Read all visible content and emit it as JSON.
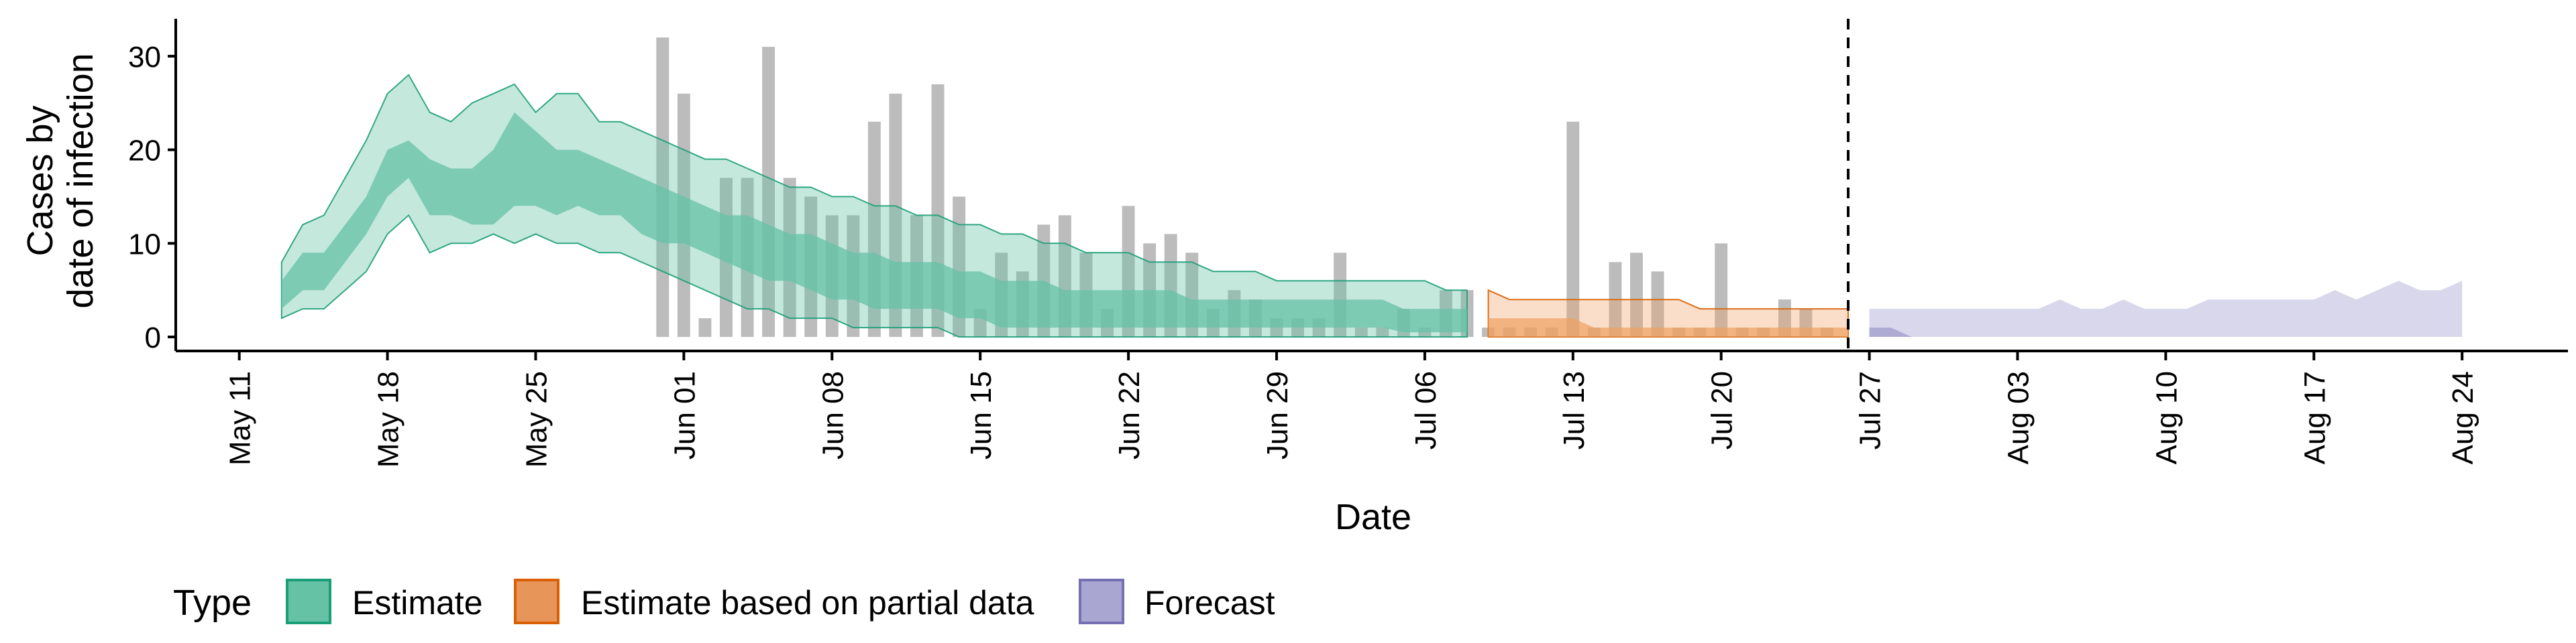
{
  "chart_data": {
    "type": "area",
    "x_axis": {
      "label": "Date",
      "range": [
        "2020-05-08",
        "2020-08-29"
      ],
      "ticks": [
        {
          "date": "2020-05-11",
          "label": "May 11"
        },
        {
          "date": "2020-05-18",
          "label": "May 18"
        },
        {
          "date": "2020-05-25",
          "label": "May 25"
        },
        {
          "date": "2020-06-01",
          "label": "Jun 01"
        },
        {
          "date": "2020-06-08",
          "label": "Jun 08"
        },
        {
          "date": "2020-06-15",
          "label": "Jun 15"
        },
        {
          "date": "2020-06-22",
          "label": "Jun 22"
        },
        {
          "date": "2020-06-29",
          "label": "Jun 29"
        },
        {
          "date": "2020-07-06",
          "label": "Jul 06"
        },
        {
          "date": "2020-07-13",
          "label": "Jul 13"
        },
        {
          "date": "2020-07-20",
          "label": "Jul 20"
        },
        {
          "date": "2020-07-27",
          "label": "Jul 27"
        },
        {
          "date": "2020-08-03",
          "label": "Aug 03"
        },
        {
          "date": "2020-08-10",
          "label": "Aug 10"
        },
        {
          "date": "2020-08-17",
          "label": "Aug 17"
        },
        {
          "date": "2020-08-24",
          "label": "Aug 24"
        }
      ]
    },
    "y_axis": {
      "label_lines": [
        "Cases by",
        "date of infection"
      ],
      "range": [
        -1.5,
        34
      ],
      "ticks": [
        0,
        10,
        20,
        30
      ]
    },
    "vline_date": "2020-07-26",
    "grid": false,
    "legend": {
      "title": "Type",
      "position": "bottom",
      "entries": [
        {
          "label": "Estimate",
          "fill": "#66C2A5",
          "stroke": "#1B9E77"
        },
        {
          "label": "Estimate based on partial data",
          "fill": "#E8955A",
          "stroke": "#D95F02"
        },
        {
          "label": "Forecast",
          "fill": "#A9A6D2",
          "stroke": "#7570B3"
        }
      ]
    },
    "colors": {
      "observed_bar": "#A6A6A6",
      "estimate_band": "#66C2A5",
      "estimate_line": "#1B9E77",
      "partial_band": "#F0A163",
      "partial_line": "#D95F02",
      "forecast_band": "#A9A6D2",
      "forecast_line": "#7570B3"
    },
    "observed_cases": {
      "dates": [
        "2020-05-31",
        "2020-06-01",
        "2020-06-02",
        "2020-06-03",
        "2020-06-04",
        "2020-06-05",
        "2020-06-06",
        "2020-06-07",
        "2020-06-08",
        "2020-06-09",
        "2020-06-10",
        "2020-06-11",
        "2020-06-12",
        "2020-06-13",
        "2020-06-14",
        "2020-06-15",
        "2020-06-16",
        "2020-06-17",
        "2020-06-18",
        "2020-06-19",
        "2020-06-20",
        "2020-06-21",
        "2020-06-22",
        "2020-06-23",
        "2020-06-24",
        "2020-06-25",
        "2020-06-26",
        "2020-06-27",
        "2020-06-28",
        "2020-06-29",
        "2020-06-30",
        "2020-07-01",
        "2020-07-02",
        "2020-07-03",
        "2020-07-04",
        "2020-07-05",
        "2020-07-06",
        "2020-07-07",
        "2020-07-08",
        "2020-07-09",
        "2020-07-10",
        "2020-07-11",
        "2020-07-12",
        "2020-07-13",
        "2020-07-14",
        "2020-07-15",
        "2020-07-16",
        "2020-07-17",
        "2020-07-18",
        "2020-07-19",
        "2020-07-20",
        "2020-07-21",
        "2020-07-22",
        "2020-07-23",
        "2020-07-24",
        "2020-07-25"
      ],
      "values": [
        32,
        26,
        2,
        17,
        17,
        31,
        17,
        15,
        13,
        13,
        23,
        26,
        13,
        27,
        15,
        3,
        9,
        7,
        12,
        13,
        9,
        3,
        14,
        10,
        11,
        9,
        3,
        5,
        4,
        2,
        2,
        2,
        9,
        1,
        1,
        3,
        1,
        5,
        5,
        1,
        1,
        1,
        1,
        23,
        1,
        8,
        9,
        7,
        1,
        1,
        10,
        1,
        1,
        4,
        3,
        1
      ]
    },
    "estimate": {
      "dates": [
        "2020-05-13",
        "2020-05-14",
        "2020-05-15",
        "2020-05-16",
        "2020-05-17",
        "2020-05-18",
        "2020-05-19",
        "2020-05-20",
        "2020-05-21",
        "2020-05-22",
        "2020-05-23",
        "2020-05-24",
        "2020-05-25",
        "2020-05-26",
        "2020-05-27",
        "2020-05-28",
        "2020-05-29",
        "2020-05-30",
        "2020-05-31",
        "2020-06-01",
        "2020-06-02",
        "2020-06-03",
        "2020-06-04",
        "2020-06-05",
        "2020-06-06",
        "2020-06-07",
        "2020-06-08",
        "2020-06-09",
        "2020-06-10",
        "2020-06-11",
        "2020-06-12",
        "2020-06-13",
        "2020-06-14",
        "2020-06-15",
        "2020-06-16",
        "2020-06-17",
        "2020-06-18",
        "2020-06-19",
        "2020-06-20",
        "2020-06-21",
        "2020-06-22",
        "2020-06-23",
        "2020-06-24",
        "2020-06-25",
        "2020-06-26",
        "2020-06-27",
        "2020-06-28",
        "2020-06-29",
        "2020-06-30",
        "2020-07-01",
        "2020-07-02",
        "2020-07-03",
        "2020-07-04",
        "2020-07-05",
        "2020-07-06",
        "2020-07-07",
        "2020-07-08"
      ],
      "lower90": [
        2,
        3,
        3,
        5,
        7,
        11,
        13,
        9,
        10,
        10,
        11,
        10,
        11,
        10,
        10,
        9,
        9,
        8,
        7,
        6,
        5,
        4,
        3,
        3,
        2,
        2,
        2,
        1,
        1,
        1,
        1,
        1,
        0,
        0,
        0,
        0,
        0,
        0,
        0,
        0,
        0,
        0,
        0,
        0,
        0,
        0,
        0,
        0,
        0,
        0,
        0,
        0,
        0,
        0,
        0,
        0,
        0
      ],
      "lower50": [
        3,
        5,
        5,
        8,
        11,
        15,
        17,
        13,
        13,
        12,
        12,
        14,
        14,
        13,
        14,
        13,
        13,
        11,
        10,
        10,
        9,
        8,
        7,
        6,
        6,
        5,
        4,
        4,
        3,
        3,
        3,
        3,
        2,
        2,
        1,
        1,
        1,
        1,
        1,
        1,
        1,
        1,
        1,
        1,
        1,
        1,
        1,
        1,
        1,
        1,
        1,
        1,
        1,
        0.5,
        0.5,
        0.5,
        0.5
      ],
      "median": [
        4,
        6,
        6,
        10,
        13,
        17,
        19,
        17,
        16,
        16,
        17,
        20,
        18,
        17,
        17,
        16,
        15,
        14,
        13,
        12,
        11,
        10,
        10,
        9,
        8,
        8,
        7,
        6,
        6,
        5,
        5,
        5,
        4,
        4,
        3,
        3,
        3,
        3,
        3,
        3,
        3,
        3,
        3,
        2,
        2,
        2,
        2,
        2,
        2,
        2,
        2,
        2,
        2,
        1,
        1,
        1,
        1
      ],
      "upper50": [
        6,
        9,
        9,
        12,
        15,
        20,
        21,
        19,
        18,
        18,
        20,
        24,
        22,
        20,
        20,
        19,
        18,
        17,
        16,
        15,
        14,
        13,
        13,
        12,
        11,
        11,
        10,
        9,
        9,
        8,
        8,
        8,
        7,
        7,
        6,
        6,
        6,
        5,
        5,
        5,
        5,
        5,
        5,
        4,
        4,
        4,
        4,
        4,
        4,
        4,
        4,
        4,
        4,
        3,
        3,
        3,
        3
      ],
      "upper90": [
        8,
        12,
        13,
        17,
        21,
        26,
        28,
        24,
        23,
        25,
        26,
        27,
        24,
        26,
        26,
        23,
        23,
        22,
        21,
        20,
        19,
        19,
        18,
        17,
        16,
        16,
        15,
        15,
        14,
        14,
        13,
        13,
        12,
        12,
        11,
        11,
        10,
        10,
        9,
        9,
        9,
        8,
        8,
        8,
        7,
        7,
        7,
        6,
        6,
        6,
        6,
        6,
        6,
        6,
        6,
        5,
        5
      ]
    },
    "partial": {
      "dates": [
        "2020-07-09",
        "2020-07-10",
        "2020-07-11",
        "2020-07-12",
        "2020-07-13",
        "2020-07-14",
        "2020-07-15",
        "2020-07-16",
        "2020-07-17",
        "2020-07-18",
        "2020-07-19",
        "2020-07-20",
        "2020-07-21",
        "2020-07-22",
        "2020-07-23",
        "2020-07-24",
        "2020-07-25",
        "2020-07-26"
      ],
      "lower90": [
        0,
        0,
        0,
        0,
        0,
        0,
        0,
        0,
        0,
        0,
        0,
        0,
        0,
        0,
        0,
        0,
        0,
        0
      ],
      "lower50": [
        0,
        0,
        0,
        0,
        0,
        0,
        0,
        0,
        0,
        0,
        0,
        0,
        0,
        0,
        0,
        0,
        0,
        0
      ],
      "median": [
        1,
        1,
        1,
        0.5,
        0,
        0.5,
        1,
        1,
        1,
        1,
        1,
        1,
        1,
        1,
        1,
        1,
        1,
        1
      ],
      "upper50": [
        2,
        2,
        2,
        2,
        2,
        1,
        1,
        1,
        1,
        1,
        1,
        1,
        1,
        1,
        1,
        1,
        1,
        1
      ],
      "upper90": [
        5,
        4,
        4,
        4,
        4,
        4,
        4,
        4,
        4,
        4,
        3,
        3,
        3,
        3,
        3,
        3,
        3,
        3
      ]
    },
    "forecast": {
      "dates": [
        "2020-07-27",
        "2020-07-28",
        "2020-07-29",
        "2020-07-30",
        "2020-07-31",
        "2020-08-01",
        "2020-08-02",
        "2020-08-03",
        "2020-08-04",
        "2020-08-05",
        "2020-08-06",
        "2020-08-07",
        "2020-08-08",
        "2020-08-09",
        "2020-08-10",
        "2020-08-11",
        "2020-08-12",
        "2020-08-13",
        "2020-08-14",
        "2020-08-15",
        "2020-08-16",
        "2020-08-17",
        "2020-08-18",
        "2020-08-19",
        "2020-08-20",
        "2020-08-21",
        "2020-08-22",
        "2020-08-23",
        "2020-08-24"
      ],
      "lower90": [
        0,
        0,
        0,
        0,
        0,
        0,
        0,
        0,
        0,
        0,
        0,
        0,
        0,
        0,
        0,
        0,
        0,
        0,
        0,
        0,
        0,
        0,
        0,
        0,
        0,
        0,
        0,
        0,
        0
      ],
      "median": [
        1,
        1,
        0,
        0,
        0,
        0,
        0,
        0,
        0,
        0,
        0,
        0,
        0,
        0,
        0,
        0,
        0,
        0,
        0,
        0,
        0,
        0,
        0,
        0,
        0,
        0,
        0,
        0,
        0
      ],
      "upper90": [
        3,
        3,
        3,
        3,
        3,
        3,
        3,
        3,
        3,
        4,
        3,
        3,
        4,
        3,
        3,
        3,
        4,
        4,
        4,
        4,
        4,
        4,
        5,
        4,
        5,
        6,
        5,
        5,
        6
      ]
    }
  }
}
